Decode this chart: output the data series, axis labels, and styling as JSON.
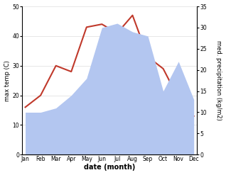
{
  "months": [
    "Jan",
    "Feb",
    "Mar",
    "Apr",
    "May",
    "Jun",
    "Jul",
    "Aug",
    "Sep",
    "Oct",
    "Nov",
    "Dec"
  ],
  "temp_line": [
    16,
    20,
    30,
    28,
    43,
    44,
    41,
    47,
    33,
    29,
    19,
    13
  ],
  "precip_fill": [
    10,
    10,
    11,
    14,
    18,
    30,
    31,
    29,
    28,
    15,
    22,
    13
  ],
  "temp_ylim": [
    0,
    50
  ],
  "precip_ylim": [
    0,
    35
  ],
  "temp_color": "#c0392b",
  "precip_fill_color": "#b3c6f0",
  "precip_edge_color": "#b3c6f0",
  "ylabel_left": "max temp (C)",
  "ylabel_right": "med. precipitation (kg/m2)",
  "xlabel": "date (month)",
  "yticks_left": [
    0,
    10,
    20,
    30,
    40,
    50
  ],
  "yticks_right": [
    0,
    5,
    10,
    15,
    20,
    25,
    30,
    35
  ],
  "background_color": "#ffffff",
  "grid_color": "#dddddd"
}
